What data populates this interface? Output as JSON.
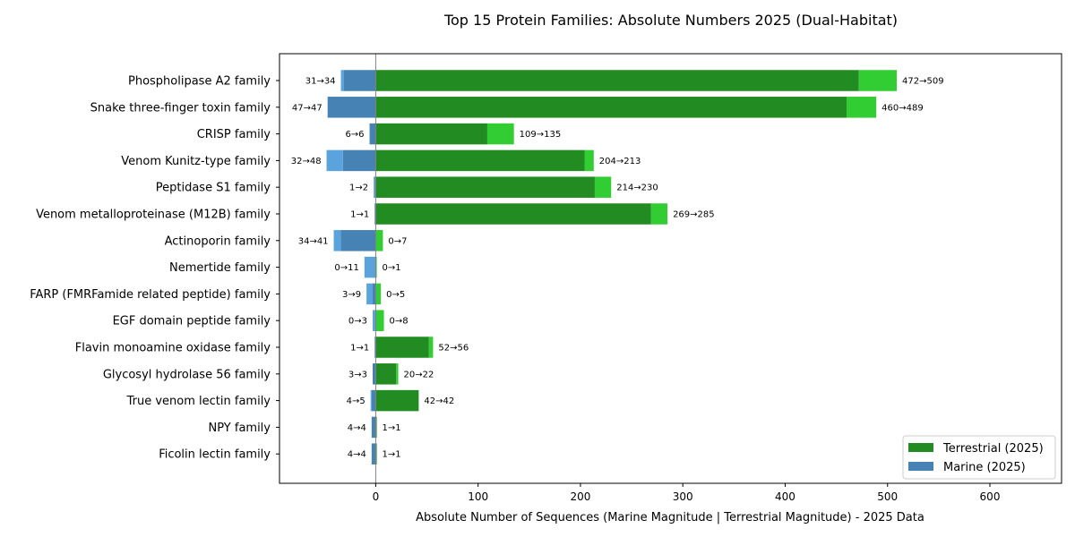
{
  "chart_data": {
    "type": "bar",
    "orientation": "horizontal-diverging",
    "title": "Top 15 Protein Families: Absolute Numbers 2025 (Dual-Habitat)",
    "xlabel": "Absolute Number of Sequences (Marine Magnitude | Terrestrial Magnitude) - 2025 Data",
    "ylabel": "",
    "xlim": [
      -94,
      670
    ],
    "x_ticks": [
      0,
      100,
      200,
      300,
      400,
      500,
      600
    ],
    "x_tick_labels": [
      "0",
      "100",
      "200",
      "300",
      "400",
      "500",
      "600"
    ],
    "legend_position": "bottom-right",
    "categories": [
      "Phospholipase A2 family",
      "Snake three-finger toxin family",
      "CRISP family",
      "Venom Kunitz-type family",
      "Peptidase S1 family",
      "Venom metalloproteinase (M12B) family",
      "Actinoporin family",
      "Nemertide family",
      "FARP (FMRFamide related peptide) family",
      "EGF domain peptide family",
      "Flavin monoamine oxidase family",
      "Glycosyl hydrolase 56 family",
      "True venom lectin family",
      "NPY family",
      "Ficolin lectin family"
    ],
    "series": [
      {
        "name": "Terrestrial (2025)",
        "color": "#228B22",
        "growth_color": "#32CD32",
        "before": [
          472,
          460,
          109,
          204,
          214,
          269,
          0,
          0,
          0,
          0,
          52,
          20,
          42,
          1,
          1
        ],
        "values": [
          509,
          489,
          135,
          213,
          230,
          285,
          7,
          1,
          5,
          8,
          56,
          22,
          42,
          1,
          1
        ],
        "labels": [
          "472→509",
          "460→489",
          "109→135",
          "204→213",
          "214→230",
          "269→285",
          "0→7",
          "0→1",
          "0→5",
          "0→8",
          "52→56",
          "20→22",
          "42→42",
          "1→1",
          "1→1"
        ]
      },
      {
        "name": "Marine (2025)",
        "color": "#4682B4",
        "growth_color": "#5BA3DC",
        "before": [
          31,
          47,
          6,
          32,
          1,
          1,
          34,
          0,
          3,
          0,
          1,
          3,
          4,
          4,
          4
        ],
        "values": [
          34,
          47,
          6,
          48,
          2,
          1,
          41,
          11,
          9,
          3,
          1,
          3,
          5,
          4,
          4
        ],
        "labels": [
          "31→34",
          "47→47",
          "6→6",
          "32→48",
          "1→2",
          "1→1",
          "34→41",
          "0→11",
          "3→9",
          "0→3",
          "1→1",
          "3→3",
          "4→5",
          "4→4",
          "4→4"
        ]
      }
    ]
  }
}
